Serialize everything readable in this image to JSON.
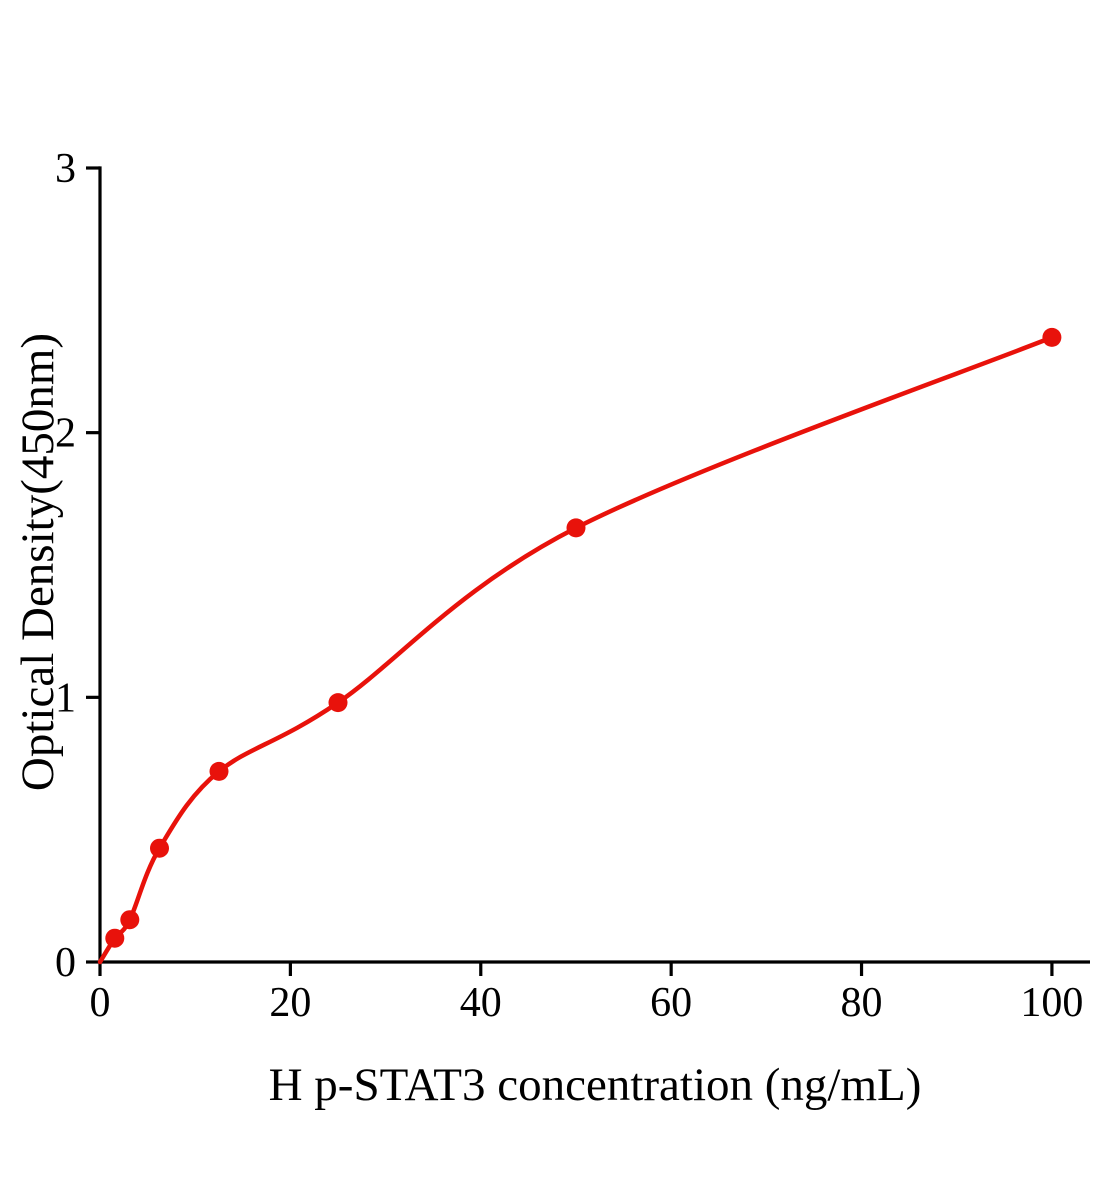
{
  "chart_data": {
    "type": "scatter",
    "title": "",
    "xlabel": "H p-STAT3 concentration (ng/mL)",
    "ylabel": "Optical Density(450nm)",
    "x": [
      1.56,
      3.13,
      6.25,
      12.5,
      25,
      50,
      100
    ],
    "y": [
      0.09,
      0.16,
      0.43,
      0.72,
      0.98,
      1.64,
      2.36
    ],
    "fit_curve": {
      "style": "smooth",
      "through_origin": true
    },
    "xlim": [
      0,
      104
    ],
    "ylim": [
      0,
      3
    ],
    "xticks": [
      0,
      20,
      40,
      60,
      80,
      100
    ],
    "yticks": [
      0,
      1,
      2,
      3
    ],
    "grid": false,
    "legend": "none",
    "marker_color": "#e8120b",
    "line_color": "#e8120b",
    "axis_color": "#000000"
  }
}
